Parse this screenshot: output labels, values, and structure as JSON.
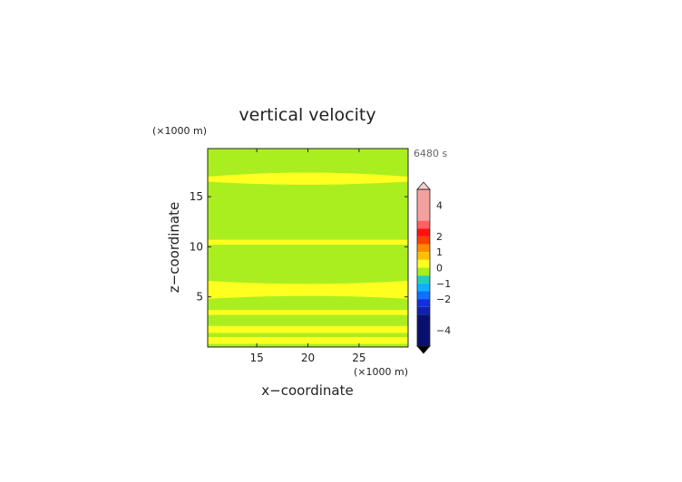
{
  "chart_data": {
    "type": "heatmap",
    "title": "vertical velocity",
    "xlabel": "x−coordinate",
    "ylabel": "z−coordinate",
    "x_unit": "(×1000 m)",
    "y_unit": "(×1000 m)",
    "time_label": "6480 s",
    "xlim": [
      10.2,
      29.8
    ],
    "ylim": [
      0,
      19.8
    ],
    "x_ticks": [
      15,
      20,
      25
    ],
    "y_ticks": [
      5,
      10,
      15
    ],
    "grid": false,
    "legend": "right colorbar",
    "colorbar": {
      "tick_values": [
        4,
        2,
        1,
        0,
        -1,
        -2,
        -4
      ],
      "tick_labels": [
        "4",
        "2",
        "1",
        "0",
        "−1",
        "−2",
        "−4"
      ],
      "levels": [
        {
          "from": 3.0,
          "to": 5.0,
          "color": "#f4a0a0"
        },
        {
          "from": 2.5,
          "to": 3.0,
          "color": "#ff6060"
        },
        {
          "from": 2.0,
          "to": 2.5,
          "color": "#ff1010"
        },
        {
          "from": 1.5,
          "to": 2.0,
          "color": "#ff4000"
        },
        {
          "from": 1.0,
          "to": 1.5,
          "color": "#ff8c00"
        },
        {
          "from": 0.5,
          "to": 1.0,
          "color": "#ffc000"
        },
        {
          "from": 0.0,
          "to": 0.5,
          "color": "#ffff20"
        },
        {
          "from": -0.5,
          "to": 0.0,
          "color": "#aaee20"
        },
        {
          "from": -1.0,
          "to": -0.5,
          "color": "#20d0b0"
        },
        {
          "from": -1.5,
          "to": -1.0,
          "color": "#10b0ff"
        },
        {
          "from": -2.0,
          "to": -1.5,
          "color": "#1070ff"
        },
        {
          "from": -2.5,
          "to": -2.0,
          "color": "#1030e0"
        },
        {
          "from": -3.0,
          "to": -2.5,
          "color": "#1020b0"
        },
        {
          "from": -5.0,
          "to": -3.0,
          "color": "#0a1070"
        }
      ],
      "over_color": "#ffd0d0",
      "under_color": "#000000"
    },
    "field": {
      "background_level": "-0.5..0",
      "background_color": "#aaee20",
      "band_level": "0..0.5",
      "band_color": "#ffff20",
      "bands": [
        {
          "z_bottom": 16.2,
          "z_top": 17.4,
          "z_top_edge": 17.0,
          "z_bottom_edge": 16.5
        },
        {
          "z_bottom": 10.2,
          "z_top": 10.7
        },
        {
          "z_bottom": 5.1,
          "z_top": 6.3,
          "z_top_edge": 6.6,
          "z_bottom_edge": 4.8
        },
        {
          "z_bottom": 3.2,
          "z_top": 3.7
        },
        {
          "z_bottom": 1.4,
          "z_top": 2.1
        },
        {
          "z_bottom": 0.3,
          "z_top": 1.0
        }
      ]
    }
  }
}
